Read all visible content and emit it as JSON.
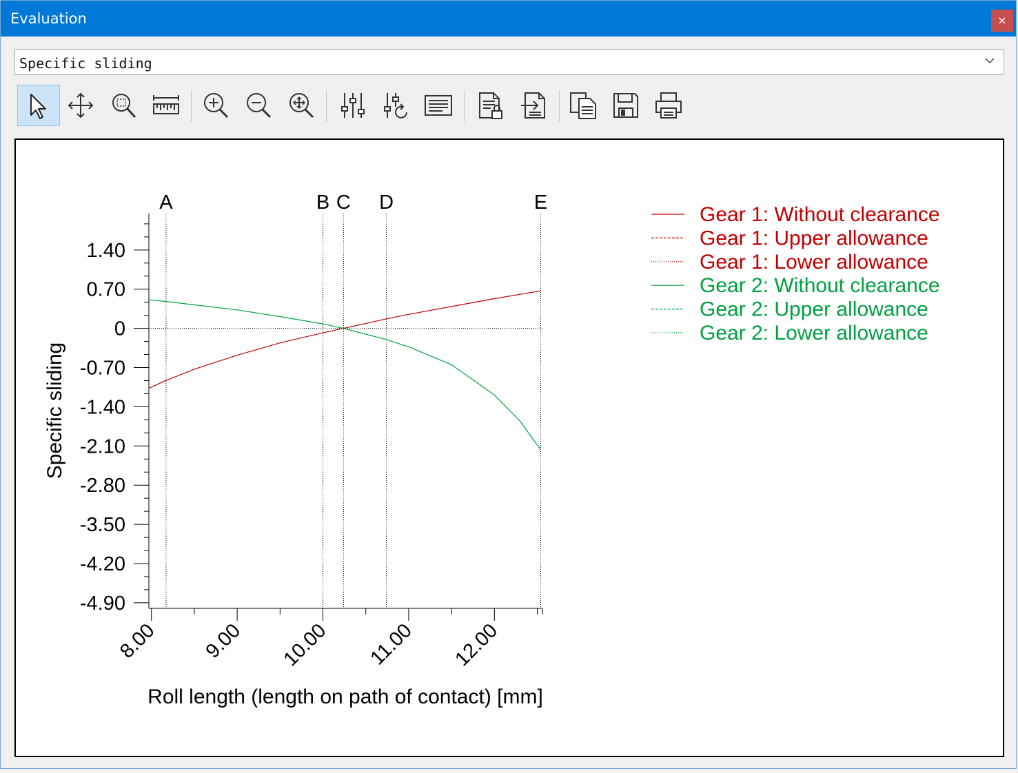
{
  "window": {
    "title": "Evaluation",
    "close_glyph": "×"
  },
  "selector": {
    "value": "Specific sliding",
    "icon": "chevron-down-icon"
  },
  "toolbar": {
    "buttons": [
      {
        "id": "select",
        "icon": "cursor-arrow-icon",
        "active": true
      },
      {
        "id": "pan",
        "icon": "move-arrows-icon",
        "active": false
      },
      {
        "id": "zoom-window",
        "icon": "zoom-window-icon",
        "active": false
      },
      {
        "id": "measure",
        "icon": "ruler-icon",
        "active": false
      },
      {
        "id": "zoom-in",
        "icon": "zoom-in-icon",
        "active": false
      },
      {
        "id": "zoom-out",
        "icon": "zoom-out-icon",
        "active": false
      },
      {
        "id": "zoom-fit",
        "icon": "zoom-fit-icon",
        "active": false
      },
      {
        "id": "settings",
        "icon": "sliders-icon",
        "active": false
      },
      {
        "id": "reset-settings",
        "icon": "sliders-refresh-icon",
        "active": false
      },
      {
        "id": "table",
        "icon": "text-list-icon",
        "active": false
      },
      {
        "id": "report-lock",
        "icon": "document-lock-icon",
        "active": false
      },
      {
        "id": "export",
        "icon": "document-export-icon",
        "active": false
      },
      {
        "id": "copy",
        "icon": "copy-icon",
        "active": false
      },
      {
        "id": "save",
        "icon": "floppy-disk-icon",
        "active": false
      },
      {
        "id": "print",
        "icon": "printer-icon",
        "active": false
      }
    ]
  },
  "chart_data": {
    "type": "line",
    "title": "",
    "xlabel": "Roll length (length on path of contact) [mm]",
    "ylabel": "Specific sliding",
    "xlim": [
      7.97,
      12.56
    ],
    "ylim": [
      -5.0,
      2.05
    ],
    "x_ticks": [
      8.0,
      9.0,
      10.0,
      11.0,
      12.0
    ],
    "x_tick_labels": [
      "8.00",
      "9.00",
      "10.00",
      "11.00",
      "12.00"
    ],
    "y_ticks": [
      1.4,
      0.7,
      0,
      -0.7,
      -1.4,
      -2.1,
      -2.8,
      -3.5,
      -4.2,
      -4.9
    ],
    "y_tick_labels": [
      "1.40",
      "0.70",
      "0",
      "-0.70",
      "-1.40",
      "-2.10",
      "-2.80",
      "-3.50",
      "-4.20",
      "-4.90"
    ],
    "grid": false,
    "legend_position": "top-right",
    "markers": [
      {
        "label": "A",
        "x": 8.17
      },
      {
        "label": "B",
        "x": 10.0
      },
      {
        "label": "C",
        "x": 10.24
      },
      {
        "label": "D",
        "x": 10.74
      },
      {
        "label": "E",
        "x": 12.54
      }
    ],
    "zero_line": 0,
    "series": [
      {
        "name": "Gear 1: Without clearance",
        "color": "#c00000",
        "dash": "solid",
        "x": [
          7.97,
          8.17,
          8.5,
          9.0,
          9.5,
          10.0,
          10.24,
          10.74,
          11.0,
          11.5,
          12.0,
          12.54
        ],
        "y": [
          -1.07,
          -0.93,
          -0.73,
          -0.48,
          -0.26,
          -0.08,
          0.0,
          0.17,
          0.25,
          0.39,
          0.53,
          0.67
        ]
      },
      {
        "name": "Gear 1: Upper allowance",
        "color": "#c00000",
        "dash": "dashed",
        "x": [],
        "y": []
      },
      {
        "name": "Gear 1: Lower allowance",
        "color": "#c00000",
        "dash": "dotted",
        "x": [],
        "y": []
      },
      {
        "name": "Gear 2: Without clearance",
        "color": "#00a040",
        "dash": "solid",
        "x": [
          7.97,
          8.17,
          8.5,
          9.0,
          9.5,
          10.0,
          10.24,
          10.74,
          11.0,
          11.5,
          12.0,
          12.3,
          12.54
        ],
        "y": [
          0.51,
          0.48,
          0.42,
          0.33,
          0.21,
          0.08,
          0.0,
          -0.2,
          -0.33,
          -0.65,
          -1.19,
          -1.66,
          -2.17
        ]
      },
      {
        "name": "Gear 2: Upper allowance",
        "color": "#00a040",
        "dash": "dashed",
        "x": [],
        "y": []
      },
      {
        "name": "Gear 2: Lower allowance",
        "color": "#00a040",
        "dash": "dotted",
        "x": [],
        "y": []
      }
    ]
  }
}
